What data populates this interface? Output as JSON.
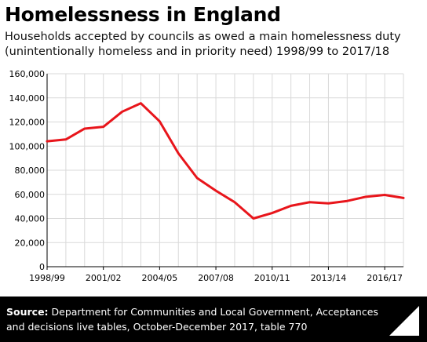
{
  "header": {
    "title": "Homelessness in England",
    "subtitle": "Households accepted by councils as owed a main homelessness duty (unintentionally homeless and in priority need) 1998/99 to 2017/18"
  },
  "footer": {
    "source_label": "Source:",
    "source_text": " Department for Communities and Local Government, Acceptances and decisions live tables, October-December 2017, table 770",
    "logo_text": "Full Fact"
  },
  "colors": {
    "line": "#e8151b",
    "grid": "#d9d9d9",
    "axis": "#000000",
    "footer_bg": "#000000"
  },
  "chart_data": {
    "type": "line",
    "x": [
      "1998/99",
      "1999/00",
      "2000/01",
      "2001/02",
      "2002/03",
      "2003/04",
      "2004/05",
      "2005/06",
      "2006/07",
      "2007/08",
      "2008/09",
      "2009/10",
      "2010/11",
      "2011/12",
      "2012/13",
      "2013/14",
      "2014/15",
      "2015/16",
      "2016/17",
      "2017/18"
    ],
    "xtick_labels": [
      "1998/99",
      "2001/02",
      "2004/05",
      "2007/08",
      "2010/11",
      "2013/14",
      "2016/17"
    ],
    "series": [
      {
        "values": [
          104000,
          105500,
          114500,
          116000,
          128500,
          135500,
          120500,
          94000,
          73500,
          63000,
          53500,
          40000,
          44500,
          50500,
          53500,
          52500,
          54500,
          58000,
          59500,
          57000
        ]
      }
    ],
    "ylim": [
      0,
      160000
    ],
    "yticks": [
      0,
      20000,
      40000,
      60000,
      80000,
      100000,
      120000,
      140000,
      160000
    ],
    "ytick_labels": [
      "0",
      "20,000",
      "40,000",
      "60,000",
      "80,000",
      "100,000",
      "120,000",
      "140,000",
      "160,000"
    ],
    "grid": true,
    "legend": "none"
  }
}
